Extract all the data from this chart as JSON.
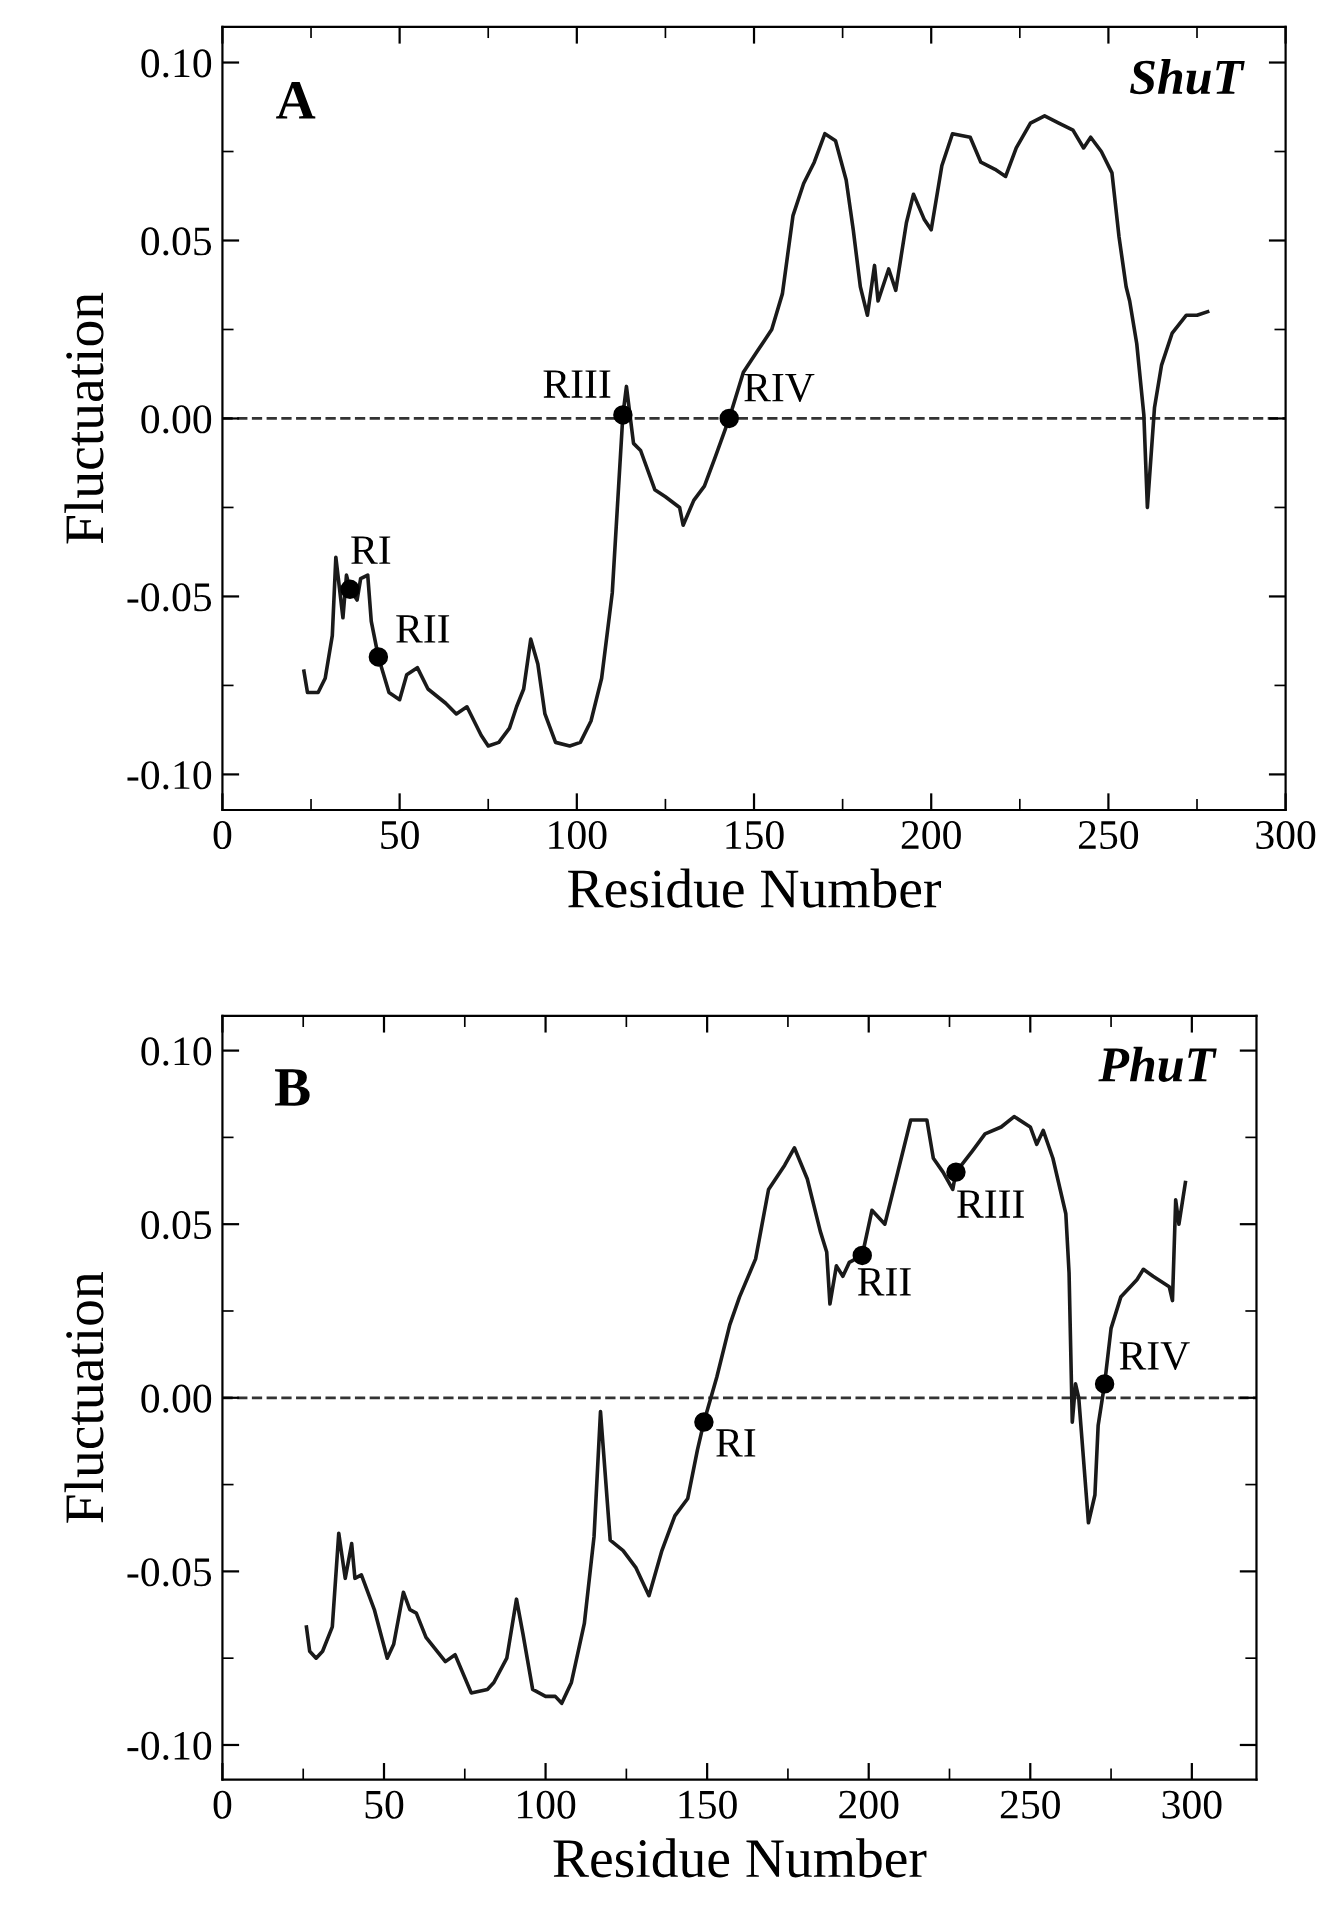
{
  "chart_data": [
    {
      "type": "line",
      "title": "A",
      "subtitle": "ShuT",
      "xlabel": "Residue Number",
      "ylabel": "Fluctuation",
      "xlim": [
        0,
        300
      ],
      "xticks": [
        0,
        50,
        100,
        150,
        200,
        250,
        300
      ],
      "ylim": [
        -0.11,
        0.11
      ],
      "yticks": [
        {
          "value": -0.1,
          "label": "-0.10"
        },
        {
          "value": -0.05,
          "label": "-0.05"
        },
        {
          "value": 0,
          "label": "0.00"
        },
        {
          "value": 0.05,
          "label": "0.05"
        },
        {
          "value": 0.1,
          "label": "0.10"
        }
      ],
      "grid": false,
      "legend": false,
      "marker": "none",
      "line_style": "solid",
      "ref_lines": [
        {
          "axis": "y",
          "value": 0,
          "line_style": "dashed",
          "color": "#333333"
        }
      ],
      "series": [
        {
          "color": "#1a1a1a",
          "x": [
            23,
            24,
            27,
            29,
            31,
            32,
            34,
            35,
            36,
            38,
            39,
            41,
            42,
            44,
            47,
            50,
            52,
            55,
            58,
            63,
            66,
            69,
            73,
            75,
            78,
            81,
            83,
            85,
            87,
            89,
            91,
            94,
            98,
            101,
            104,
            107,
            110,
            113,
            114,
            116,
            118,
            122,
            125,
            129,
            130,
            133,
            136,
            139,
            143,
            147,
            151,
            155,
            158,
            161,
            164,
            167,
            170,
            173,
            176,
            178,
            180,
            182,
            184,
            185,
            188,
            190,
            193,
            195,
            198,
            200,
            203,
            206,
            211,
            214,
            218,
            221,
            224,
            228,
            232,
            236,
            240,
            243,
            245,
            248,
            251,
            253,
            255,
            256,
            258,
            260,
            261,
            263,
            265,
            268,
            272,
            275,
            278
          ],
          "values": [
            -0.071,
            -0.077,
            -0.077,
            -0.073,
            -0.061,
            -0.039,
            -0.056,
            -0.044,
            -0.048,
            -0.051,
            -0.045,
            -0.044,
            -0.057,
            -0.067,
            -0.077,
            -0.079,
            -0.072,
            -0.07,
            -0.076,
            -0.08,
            -0.083,
            -0.081,
            -0.089,
            -0.092,
            -0.091,
            -0.087,
            -0.081,
            -0.076,
            -0.062,
            -0.069,
            -0.083,
            -0.091,
            -0.092,
            -0.091,
            -0.085,
            -0.073,
            -0.049,
            0.001,
            0.009,
            -0.007,
            -0.009,
            -0.02,
            -0.022,
            -0.025,
            -0.03,
            -0.023,
            -0.019,
            -0.011,
            0.0,
            0.013,
            0.019,
            0.025,
            0.035,
            0.057,
            0.066,
            0.072,
            0.08,
            0.078,
            0.067,
            0.053,
            0.037,
            0.029,
            0.043,
            0.033,
            0.042,
            0.036,
            0.055,
            0.063,
            0.056,
            0.053,
            0.071,
            0.08,
            0.079,
            0.072,
            0.07,
            0.068,
            0.076,
            0.083,
            0.085,
            0.083,
            0.081,
            0.076,
            0.079,
            0.075,
            0.069,
            0.051,
            0.037,
            0.033,
            0.021,
            0.001,
            -0.025,
            0.003,
            0.015,
            0.024,
            0.029,
            0.029,
            0.03
          ]
        },
        {
          "type": "scatter",
          "color": "#000000",
          "marker": "circle",
          "x": [
            36,
            44,
            113,
            143
          ],
          "values": [
            -0.048,
            -0.067,
            0.001,
            0.0
          ]
        }
      ],
      "annotations": [
        {
          "text": "RI",
          "x": 36,
          "y": -0.048
        },
        {
          "text": "RII",
          "x": 44,
          "y": -0.067
        },
        {
          "text": "RIII",
          "x": 113,
          "y": 0.001
        },
        {
          "text": "RIV",
          "x": 143,
          "y": 0.0
        }
      ]
    },
    {
      "type": "line",
      "title": "B",
      "subtitle": "PhuT",
      "xlabel": "Residue Number",
      "ylabel": "Fluctuation",
      "xlim": [
        0,
        320
      ],
      "xticks": [
        0,
        50,
        100,
        150,
        200,
        250,
        300
      ],
      "ylim": [
        -0.11,
        0.11
      ],
      "yticks": [
        {
          "value": -0.1,
          "label": "-0.10"
        },
        {
          "value": -0.05,
          "label": "-0.05"
        },
        {
          "value": 0,
          "label": "0.00"
        },
        {
          "value": 0.05,
          "label": "0.05"
        },
        {
          "value": 0.1,
          "label": "0.10"
        }
      ],
      "grid": false,
      "legend": false,
      "marker": "none",
      "line_style": "solid",
      "ref_lines": [
        {
          "axis": "y",
          "value": 0,
          "line_style": "dashed",
          "color": "#333333"
        }
      ],
      "series": [
        {
          "color": "#1a1a1a",
          "x": [
            26,
            27,
            29,
            31,
            34,
            36,
            38,
            40,
            41,
            43,
            47,
            51,
            53,
            56,
            58,
            60,
            63,
            69,
            72,
            77,
            82,
            84,
            88,
            91,
            93,
            96,
            100,
            103,
            105,
            108,
            112,
            115,
            117,
            120,
            124,
            128,
            132,
            136,
            140,
            144,
            147,
            149,
            153,
            157,
            160,
            165,
            169,
            174,
            177,
            181,
            185,
            187,
            188,
            190,
            192,
            194,
            198,
            201,
            205,
            209,
            213,
            218,
            220,
            223,
            226,
            227,
            232,
            236,
            241,
            245,
            250,
            252,
            254,
            257,
            261,
            262,
            263,
            264,
            265,
            268,
            270,
            271,
            273,
            275,
            278,
            283,
            285,
            288,
            293,
            294,
            295,
            296,
            298
          ],
          "values": [
            -0.066,
            -0.073,
            -0.075,
            -0.073,
            -0.066,
            -0.039,
            -0.052,
            -0.042,
            -0.052,
            -0.051,
            -0.061,
            -0.075,
            -0.071,
            -0.056,
            -0.061,
            -0.062,
            -0.069,
            -0.076,
            -0.074,
            -0.085,
            -0.084,
            -0.082,
            -0.075,
            -0.058,
            -0.068,
            -0.084,
            -0.086,
            -0.086,
            -0.088,
            -0.082,
            -0.065,
            -0.04,
            -0.004,
            -0.041,
            -0.044,
            -0.049,
            -0.057,
            -0.044,
            -0.034,
            -0.029,
            -0.015,
            -0.007,
            0.006,
            0.021,
            0.029,
            0.04,
            0.06,
            0.067,
            0.072,
            0.063,
            0.048,
            0.042,
            0.027,
            0.038,
            0.035,
            0.039,
            0.041,
            0.054,
            0.05,
            0.065,
            0.08,
            0.08,
            0.069,
            0.065,
            0.06,
            0.065,
            0.071,
            0.076,
            0.078,
            0.081,
            0.078,
            0.073,
            0.077,
            0.069,
            0.053,
            0.036,
            -0.007,
            0.004,
            0.0,
            -0.036,
            -0.028,
            -0.008,
            0.004,
            0.02,
            0.029,
            0.034,
            0.037,
            0.035,
            0.032,
            0.028,
            0.057,
            0.05,
            0.062
          ]
        },
        {
          "type": "scatter",
          "color": "#000000",
          "marker": "circle",
          "x": [
            149,
            198,
            227,
            273
          ],
          "values": [
            -0.007,
            0.041,
            0.065,
            0.004
          ]
        }
      ],
      "annotations": [
        {
          "text": "RI",
          "x": 149,
          "y": -0.007
        },
        {
          "text": "RII",
          "x": 198,
          "y": 0.041
        },
        {
          "text": "RIII",
          "x": 227,
          "y": 0.065
        },
        {
          "text": "RIV",
          "x": 273,
          "y": 0.004
        }
      ]
    }
  ]
}
